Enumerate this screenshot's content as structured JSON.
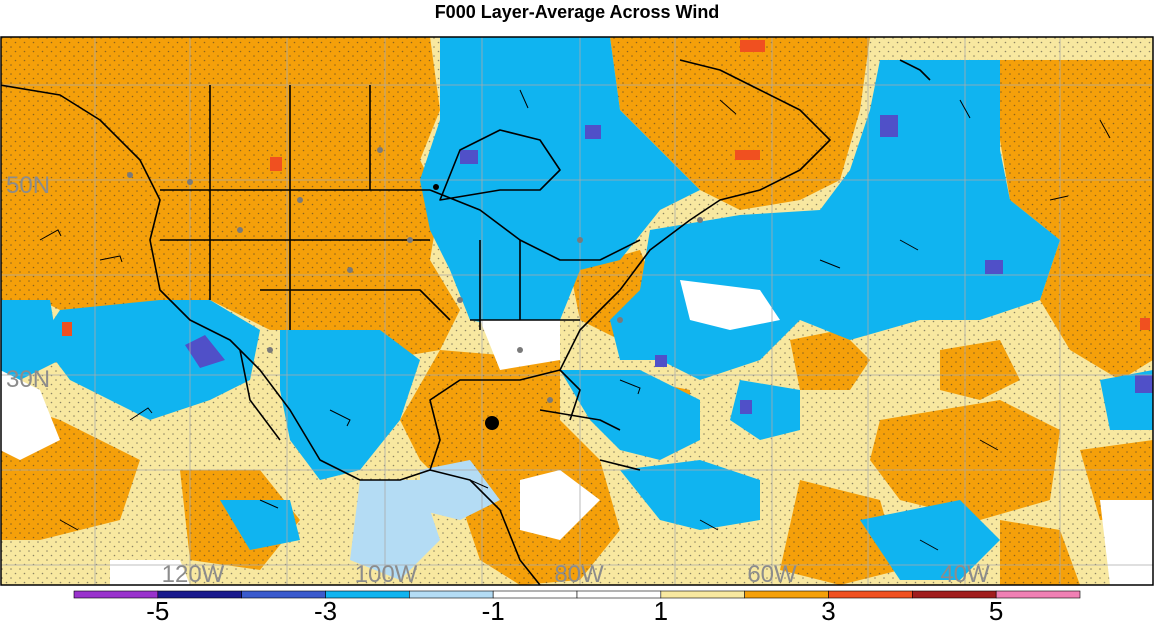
{
  "title": "F000 Layer-Average Across Wind",
  "colors": {
    "ocean_background": "#ffffff",
    "orange": "#f5a00a",
    "light_yellow": "#f8e8a0",
    "light_blue": "#b4dcf4",
    "blue": "#10b4f0",
    "dark_blue": "#5050c8",
    "red": "#f05020",
    "coastline": "#000000",
    "gridline": "#aaaaaa",
    "label_gray": "#8c8c8c",
    "station_dot": "#7a7a7a"
  },
  "map": {
    "region": "North America and North Atlantic",
    "latitude_labels": [
      {
        "text": "50N",
        "lat": 50
      },
      {
        "text": "30N",
        "lat": 30
      }
    ],
    "longitude_labels": [
      {
        "text": "120W",
        "lon": -120
      },
      {
        "text": "100W",
        "lon": -100
      },
      {
        "text": "80W",
        "lon": -80
      },
      {
        "text": "60W",
        "lon": -60
      },
      {
        "text": "40W",
        "lon": -40
      }
    ]
  },
  "colorbar": {
    "segments": [
      {
        "color": "#9932cc"
      },
      {
        "color": "#1a1a8c"
      },
      {
        "color": "#3a5acc"
      },
      {
        "color": "#10b4f0"
      },
      {
        "color": "#b4dcf4"
      },
      {
        "color": "#ffffff"
      },
      {
        "color": "#ffffff"
      },
      {
        "color": "#f8e8a0"
      },
      {
        "color": "#f5a00a"
      },
      {
        "color": "#f05020"
      },
      {
        "color": "#a01e1e"
      },
      {
        "color": "#f080b4"
      }
    ],
    "tick_labels": [
      {
        "text": "-5",
        "boundary": 1
      },
      {
        "text": "-3",
        "boundary": 3
      },
      {
        "text": "-1",
        "boundary": 5
      },
      {
        "text": "1",
        "boundary": 7
      },
      {
        "text": "3",
        "boundary": 9
      },
      {
        "text": "5",
        "boundary": 11
      }
    ]
  }
}
